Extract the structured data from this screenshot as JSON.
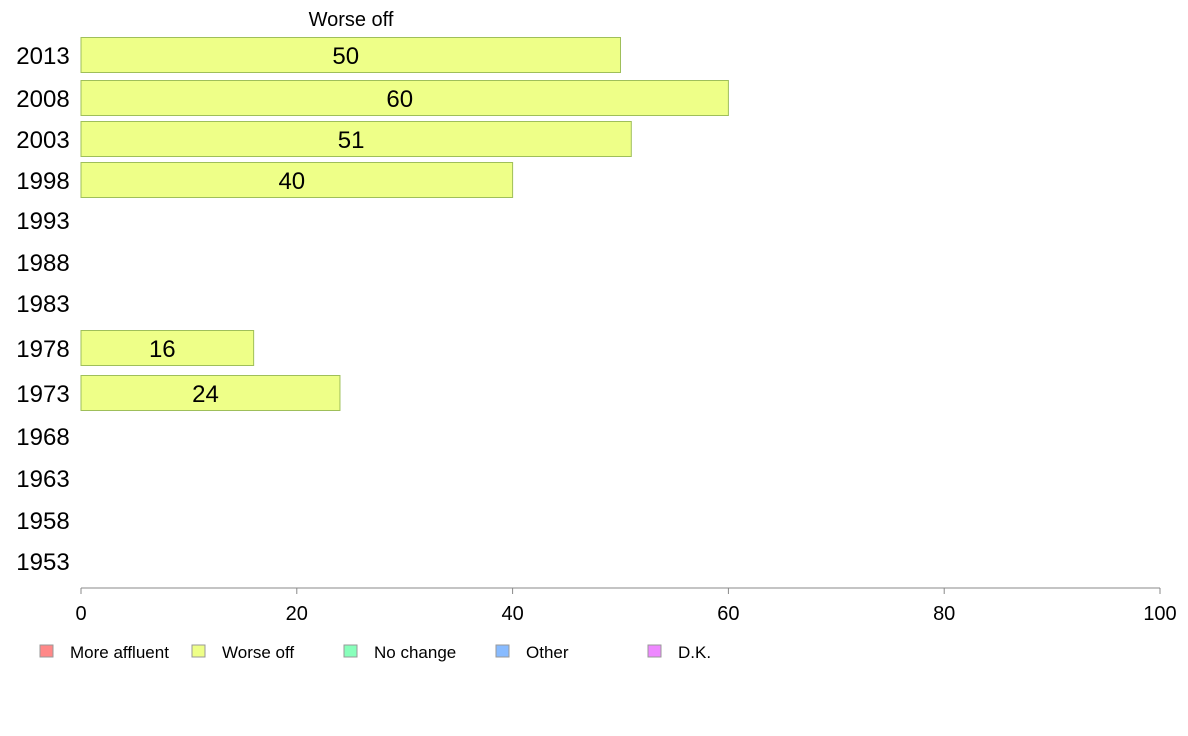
{
  "chart_data": {
    "type": "bar",
    "orientation": "horizontal",
    "title": "Worse off",
    "categories": [
      "2013",
      "2008",
      "2003",
      "1998",
      "1993",
      "1988",
      "1983",
      "1978",
      "1973",
      "1968",
      "1963",
      "1958",
      "1953"
    ],
    "series": [
      {
        "name": "Worse off",
        "color": "#eeff88",
        "values": [
          50,
          60,
          51,
          40,
          null,
          null,
          null,
          16,
          24,
          null,
          null,
          null,
          null
        ]
      }
    ],
    "xlim": [
      0,
      100
    ],
    "xticks": [
      0,
      20,
      40,
      60,
      80,
      100
    ],
    "xlabel": "",
    "ylabel": "",
    "grid": false,
    "legend": {
      "placement": "bottom-left",
      "entries": [
        {
          "label": "More affluent",
          "color": "#ff8888"
        },
        {
          "label": "Worse off",
          "color": "#eeff88"
        },
        {
          "label": "No change",
          "color": "#88ffbb"
        },
        {
          "label": "Other",
          "color": "#88bbff"
        },
        {
          "label": "D.K.",
          "color": "#ee88ff"
        }
      ]
    }
  }
}
